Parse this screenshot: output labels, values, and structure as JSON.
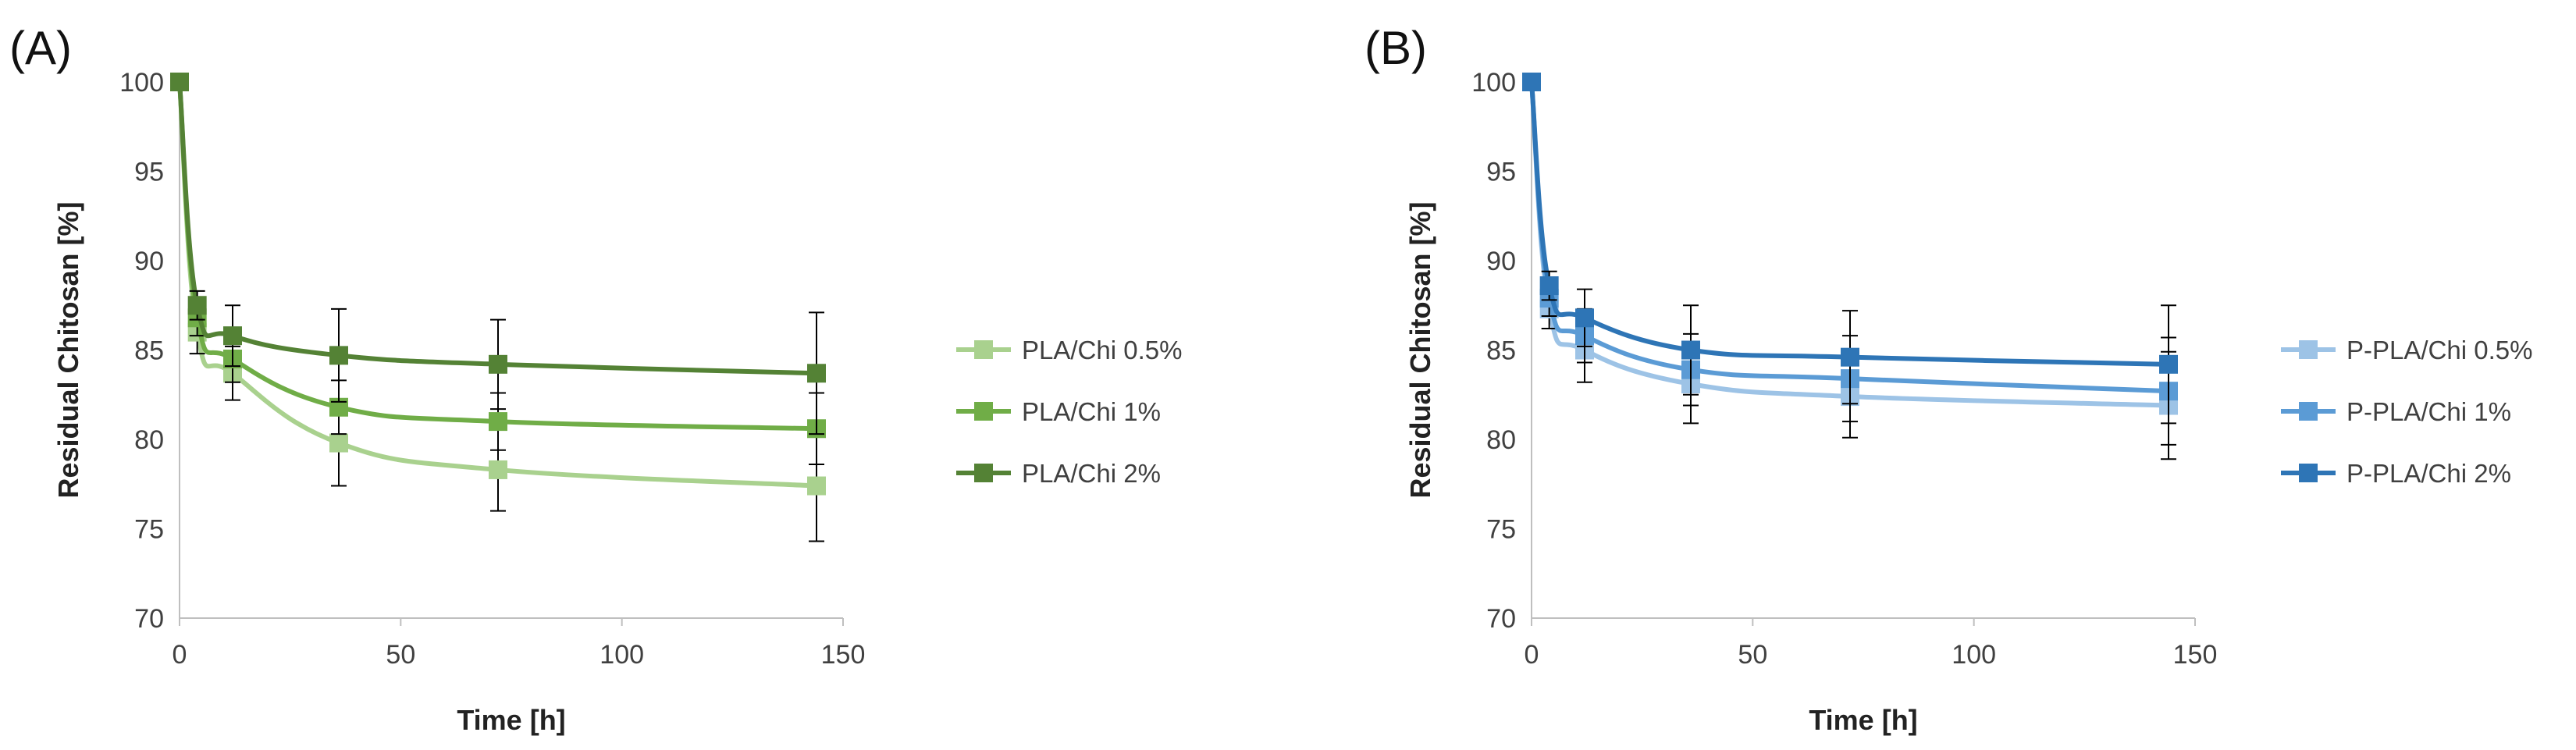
{
  "colors": {
    "axis": "#bfbfbf",
    "errorbar": "#000000",
    "text": "#404040"
  },
  "chart_data": [
    {
      "type": "line",
      "panel_label": "(A)",
      "xlabel": "Time [h]",
      "ylabel": "Residual Chitosan [%]",
      "xlim": [
        0,
        150
      ],
      "ylim": [
        70,
        100
      ],
      "xticks": [
        0,
        50,
        100,
        150
      ],
      "yticks": [
        70,
        75,
        80,
        85,
        90,
        95,
        100
      ],
      "grid": false,
      "legend_position": "right",
      "series": [
        {
          "name": "PLA/Chi 0.5%",
          "color": "#a9d18e",
          "x": [
            0,
            4,
            12,
            36,
            72,
            144
          ],
          "y": [
            100,
            86,
            83.7,
            79.8,
            78.3,
            77.4
          ],
          "err": [
            0,
            1.2,
            1.5,
            2.4,
            2.3,
            3.1
          ]
        },
        {
          "name": "PLA/Chi 1%",
          "color": "#70ad47",
          "x": [
            0,
            4,
            12,
            36,
            72,
            144
          ],
          "y": [
            100,
            86.8,
            84.5,
            81.8,
            81.0,
            80.6
          ],
          "err": [
            0,
            1.0,
            1.3,
            1.5,
            1.6,
            2.0
          ]
        },
        {
          "name": "PLA/Chi 2%",
          "color": "#548235",
          "x": [
            0,
            4,
            12,
            36,
            72,
            144
          ],
          "y": [
            100,
            87.5,
            85.8,
            84.7,
            84.2,
            83.7
          ],
          "err": [
            0,
            0.8,
            1.7,
            2.6,
            2.5,
            3.4
          ]
        }
      ]
    },
    {
      "type": "line",
      "panel_label": "(B)",
      "xlabel": "Time [h]",
      "ylabel": "Residual Chitosan [%]",
      "xlim": [
        0,
        150
      ],
      "ylim": [
        70,
        100
      ],
      "xticks": [
        0,
        50,
        100,
        150
      ],
      "yticks": [
        70,
        75,
        80,
        85,
        90,
        95,
        100
      ],
      "grid": false,
      "legend_position": "right",
      "series": [
        {
          "name": "P-PLA/Chi 0.5%",
          "color": "#9dc3e6",
          "x": [
            0,
            4,
            12,
            36,
            72,
            144
          ],
          "y": [
            100,
            87.3,
            85.0,
            83.1,
            82.4,
            81.9
          ],
          "err": [
            0,
            1.1,
            1.8,
            2.2,
            2.3,
            3.0
          ]
        },
        {
          "name": "P-PLA/Chi 1%",
          "color": "#5b9bd5",
          "x": [
            0,
            4,
            12,
            36,
            72,
            144
          ],
          "y": [
            100,
            87.9,
            85.8,
            83.9,
            83.4,
            82.7
          ],
          "err": [
            0,
            1.0,
            1.5,
            2.0,
            2.4,
            3.0
          ]
        },
        {
          "name": "P-PLA/Chi 2%",
          "color": "#2e75b6",
          "x": [
            0,
            4,
            12,
            36,
            72,
            144
          ],
          "y": [
            100,
            88.6,
            86.8,
            85.0,
            84.6,
            84.2
          ],
          "err": [
            0,
            0.8,
            1.6,
            2.5,
            2.6,
            3.3
          ]
        }
      ]
    }
  ]
}
